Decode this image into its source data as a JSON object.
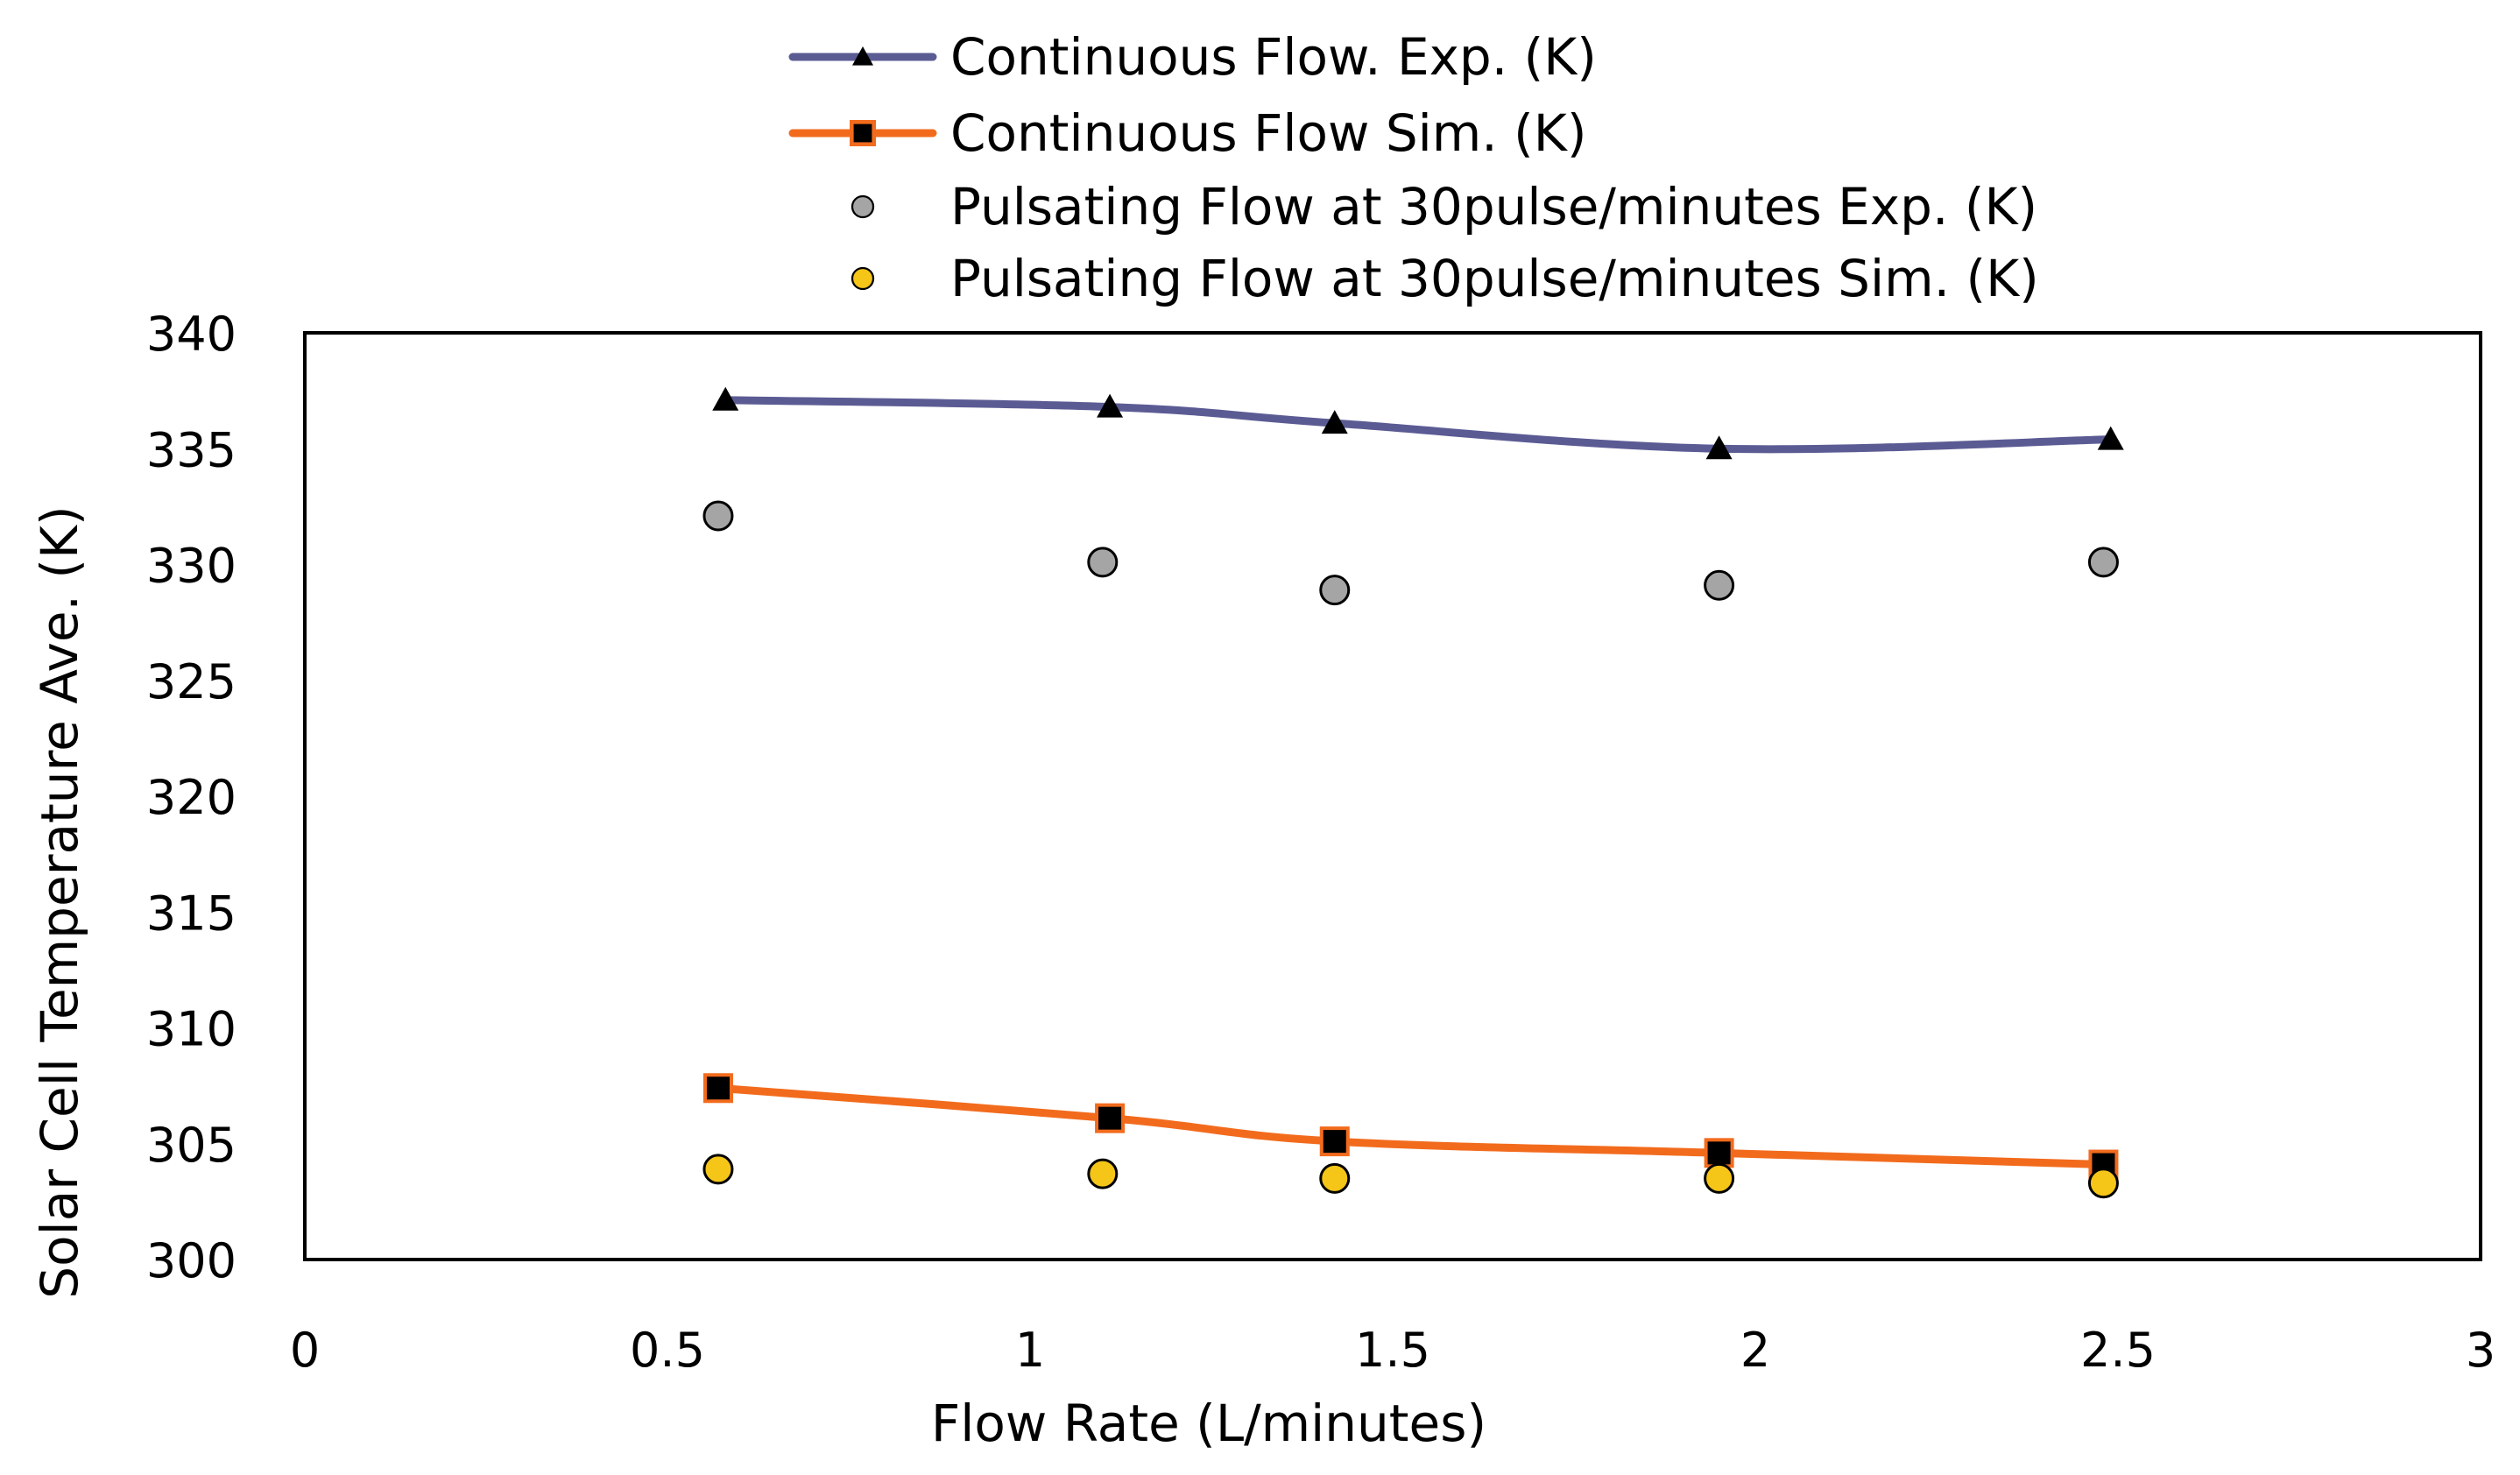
{
  "chart_data": {
    "type": "line",
    "title": "",
    "xlabel": "Flow Rate (L/minutes)",
    "ylabel": "Solar Cell Temperature Ave. (K)",
    "xlim": [
      0,
      3
    ],
    "ylim": [
      300,
      340
    ],
    "xticks": [
      0,
      0.5,
      1,
      1.5,
      2,
      2.5,
      3
    ],
    "xtick_labels": [
      "0",
      "0.5",
      "1",
      "1.5",
      "2",
      "2.5",
      "3"
    ],
    "yticks": [
      300,
      305,
      310,
      315,
      320,
      325,
      330,
      335,
      340
    ],
    "ytick_labels": [
      "300",
      "305",
      "310",
      "315",
      "320",
      "325",
      "330",
      "335",
      "340"
    ],
    "grid": false,
    "legend_position": "top",
    "series": [
      {
        "name": "Continuous Flow. Exp. (K)",
        "style": "line",
        "marker": "triangle",
        "color": "#5b5b94",
        "marker_color": "#000000",
        "x": [
          0.58,
          1.11,
          1.42,
          1.95,
          2.49
        ],
        "y": [
          337.1,
          336.8,
          336.1,
          335.0,
          335.4
        ]
      },
      {
        "name": "Continuous Flow Sim. (K)",
        "style": "line",
        "marker": "square",
        "color": "#f26b1d",
        "marker_color": "#000000",
        "x": [
          0.57,
          1.11,
          1.42,
          1.95,
          2.48
        ],
        "y": [
          307.4,
          306.1,
          305.1,
          304.6,
          304.1
        ]
      },
      {
        "name": "Pulsating Flow at 30pulse/minutes Exp. (K)",
        "style": "scatter",
        "marker": "circle",
        "color": "#a5a5a5",
        "marker_color": "#a5a5a5",
        "x": [
          0.57,
          1.1,
          1.42,
          1.95,
          2.48
        ],
        "y": [
          332.1,
          330.1,
          328.9,
          329.1,
          330.1
        ]
      },
      {
        "name": "Pulsating Flow at 30pulse/minutes Sim. (K)",
        "style": "scatter",
        "marker": "circle",
        "color": "#f5c518",
        "marker_color": "#f5c518",
        "x": [
          0.57,
          1.1,
          1.42,
          1.95,
          2.48
        ],
        "y": [
          303.9,
          303.7,
          303.5,
          303.5,
          303.3
        ]
      }
    ]
  }
}
